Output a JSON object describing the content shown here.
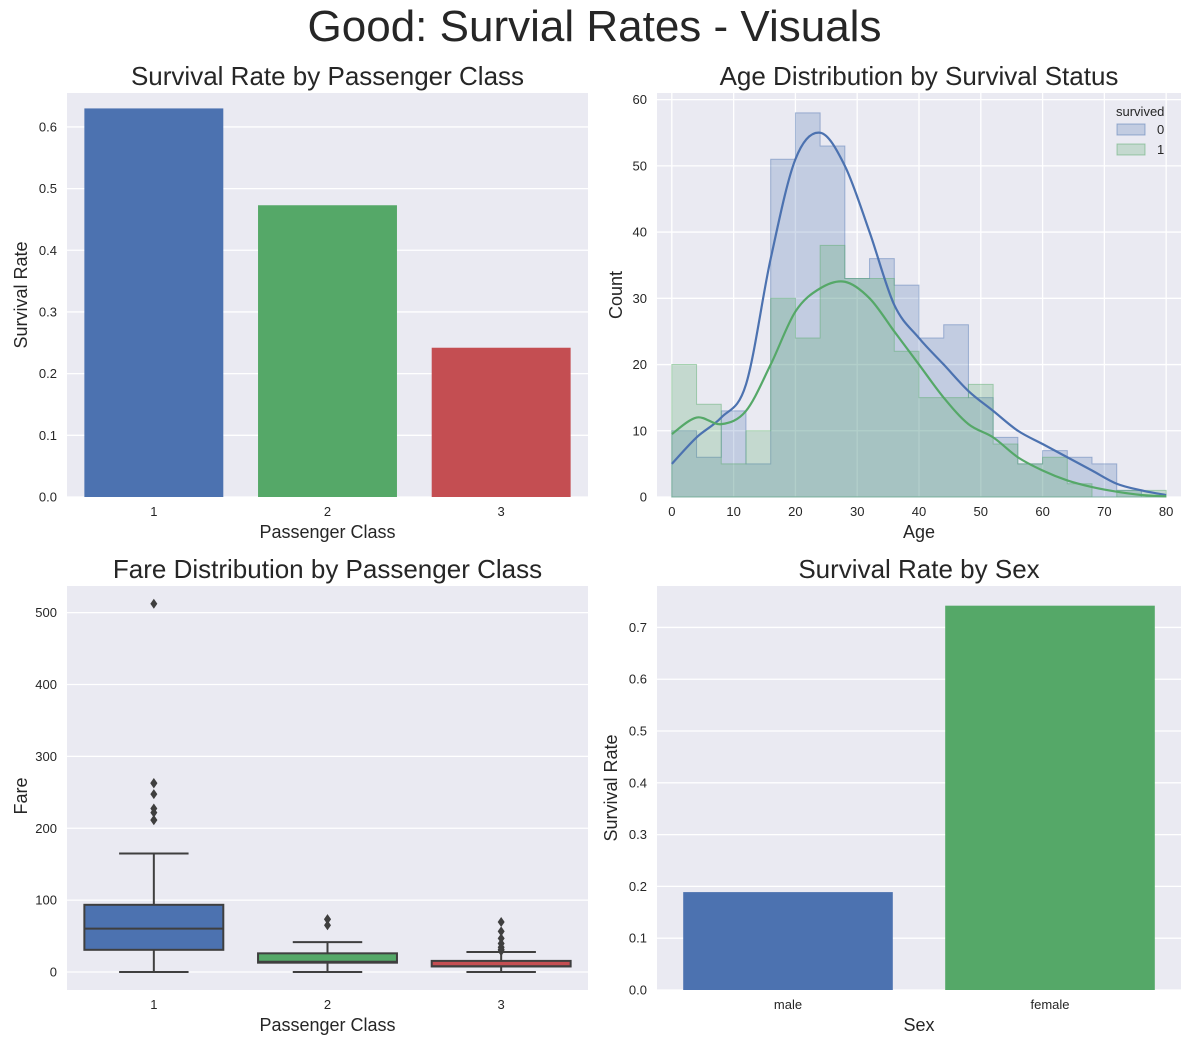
{
  "figure_title": "Good: Survial Rates - Visuals",
  "chart_data": [
    {
      "type": "bar",
      "title": "Survival Rate by Passenger Class",
      "xlabel": "Passenger Class",
      "ylabel": "Survival Rate",
      "categories": [
        "1",
        "2",
        "3"
      ],
      "values": [
        0.63,
        0.473,
        0.242
      ],
      "colors": [
        "#4c72b0",
        "#55a868",
        "#c44e52"
      ],
      "ylim": [
        0,
        0.655
      ],
      "yticks": [
        0.0,
        0.1,
        0.2,
        0.3,
        0.4,
        0.5,
        0.6
      ],
      "ytick_labels": [
        "0.0",
        "0.1",
        "0.2",
        "0.3",
        "0.4",
        "0.5",
        "0.6"
      ],
      "grid": true
    },
    {
      "type": "histogram",
      "title": "Age Distribution by Survival Status",
      "xlabel": "Age",
      "ylabel": "Count",
      "xlim": [
        -2.4,
        82.4
      ],
      "ylim": [
        0,
        61
      ],
      "xticks": [
        0,
        10,
        20,
        30,
        40,
        50,
        60,
        70,
        80
      ],
      "xtick_labels": [
        "0",
        "10",
        "20",
        "30",
        "40",
        "50",
        "60",
        "70",
        "80"
      ],
      "yticks": [
        0,
        10,
        20,
        30,
        40,
        50,
        60
      ],
      "ytick_labels": [
        "0",
        "10",
        "20",
        "30",
        "40",
        "50",
        "60"
      ],
      "bin_edges": [
        0,
        4,
        8,
        12,
        16,
        20,
        24,
        28,
        32,
        36,
        40,
        44,
        48,
        52,
        56,
        60,
        64,
        68,
        72,
        76,
        80
      ],
      "legend_title": "survived",
      "legend_position": "top-right",
      "grid": true,
      "series": [
        {
          "name": "0",
          "color": "#4c72b0",
          "counts": [
            10,
            6,
            13,
            5,
            51,
            58,
            53,
            33,
            36,
            32,
            24,
            26,
            15,
            9,
            5,
            7,
            6,
            5,
            1,
            0
          ],
          "kde_x": [
            0,
            4,
            8,
            12,
            16,
            20,
            24,
            28,
            32,
            36,
            40,
            44,
            48,
            52,
            56,
            60,
            64,
            68,
            72,
            76,
            80
          ],
          "kde_y": [
            5,
            9,
            12,
            17,
            36,
            51,
            55,
            50,
            40,
            29,
            24,
            20,
            16,
            13,
            10,
            8,
            6,
            4,
            2,
            1,
            0.3
          ]
        },
        {
          "name": "1",
          "color": "#55a868",
          "counts": [
            20,
            14,
            5,
            10,
            30,
            24,
            38,
            33,
            33,
            22,
            15,
            15,
            17,
            8,
            5,
            6,
            2,
            0,
            1,
            1
          ],
          "kde_x": [
            0,
            4,
            8,
            12,
            16,
            20,
            24,
            28,
            32,
            36,
            40,
            44,
            48,
            52,
            56,
            60,
            64,
            68,
            72,
            76,
            80
          ],
          "kde_y": [
            9.5,
            12,
            11,
            13,
            20,
            28,
            31.5,
            32.5,
            30,
            25,
            20,
            15,
            11,
            9,
            6,
            4,
            2.5,
            1.5,
            0.8,
            0.3,
            0.1
          ]
        }
      ]
    },
    {
      "type": "box",
      "title": "Fare Distribution by Passenger Class",
      "xlabel": "Passenger Class",
      "ylabel": "Fare",
      "categories": [
        "1",
        "2",
        "3"
      ],
      "colors": [
        "#4c72b0",
        "#55a868",
        "#c44e52"
      ],
      "ylim": [
        -25,
        537
      ],
      "yticks": [
        0,
        100,
        200,
        300,
        400,
        500
      ],
      "ytick_labels": [
        "0",
        "100",
        "200",
        "300",
        "400",
        "500"
      ],
      "grid": true,
      "boxes": [
        {
          "min": 0,
          "q1": 30.9,
          "median": 60.3,
          "q3": 93.5,
          "max": 164.9,
          "outliers": [
            211.3,
            211.5,
            221.8,
            227.5,
            247.5,
            262.4,
            263,
            512.3
          ]
        },
        {
          "min": 0,
          "q1": 13,
          "median": 14.25,
          "q3": 26,
          "max": 41.6,
          "outliers": [
            65,
            73.5,
            73.5
          ]
        },
        {
          "min": 0,
          "q1": 7.75,
          "median": 8.05,
          "q3": 15.5,
          "max": 27.9,
          "outliers": [
            29.1,
            31.3,
            34.4,
            39.7,
            46.9,
            56.5,
            69.6
          ]
        }
      ]
    },
    {
      "type": "bar",
      "title": "Survival Rate by Sex",
      "xlabel": "Sex",
      "ylabel": "Survival Rate",
      "categories": [
        "male",
        "female"
      ],
      "values": [
        0.189,
        0.742
      ],
      "colors": [
        "#4c72b0",
        "#55a868"
      ],
      "ylim": [
        0,
        0.78
      ],
      "yticks": [
        0.0,
        0.1,
        0.2,
        0.3,
        0.4,
        0.5,
        0.6,
        0.7
      ],
      "ytick_labels": [
        "0.0",
        "0.1",
        "0.2",
        "0.3",
        "0.4",
        "0.5",
        "0.6",
        "0.7"
      ],
      "grid": true
    }
  ]
}
